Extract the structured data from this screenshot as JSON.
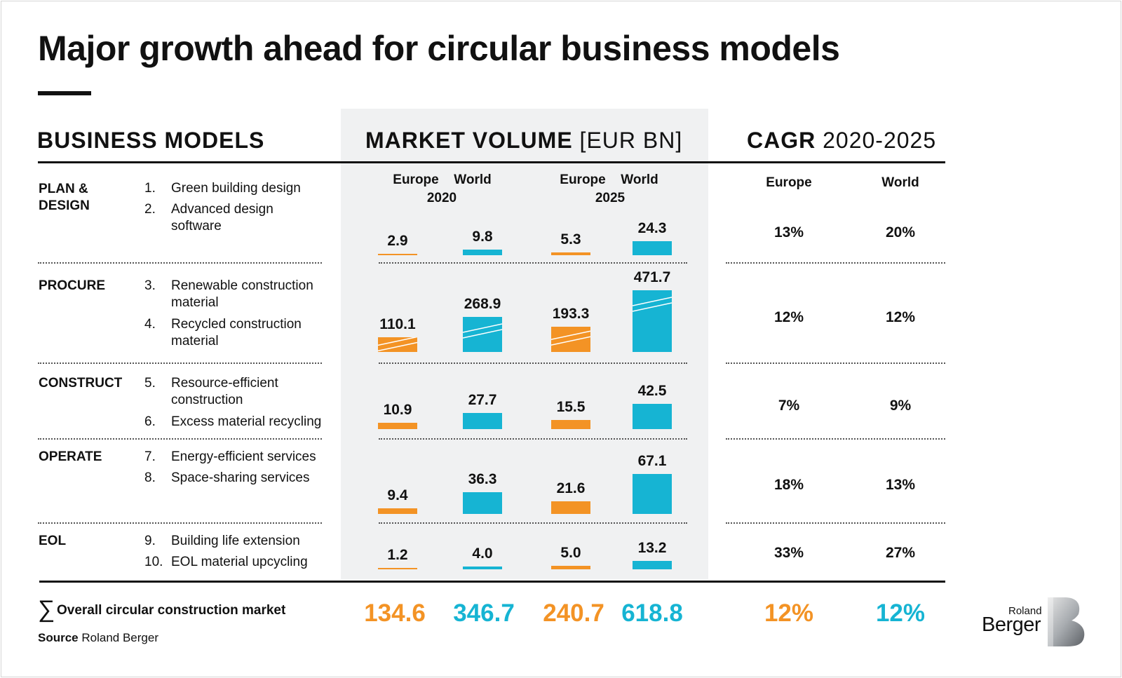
{
  "title": "Major growth ahead for circular business models",
  "headers": {
    "business_models": "BUSINESS MODELS",
    "market_volume_bold": "MARKET VOLUME",
    "market_volume_unit": "[EUR BN]",
    "cagr_bold": "CAGR",
    "cagr_range": "2020-2025"
  },
  "sub_labels": {
    "europe": "Europe",
    "world": "World",
    "year1": "2020",
    "year2": "2025"
  },
  "colors": {
    "europe": "#f39325",
    "world": "#16b4d3",
    "panel": "#f0f1f2"
  },
  "rows": [
    {
      "category": "PLAN & DESIGN",
      "items": [
        {
          "n": "1.",
          "t": "Green building design"
        },
        {
          "n": "2.",
          "t": "Advanced design software"
        }
      ]
    },
    {
      "category": "PROCURE",
      "items": [
        {
          "n": "3.",
          "t": "Renewable construction material"
        },
        {
          "n": "4.",
          "t": "Recycled construction material"
        }
      ]
    },
    {
      "category": "CONSTRUCT",
      "items": [
        {
          "n": "5.",
          "t": "Resource-efficient construction"
        },
        {
          "n": "6.",
          "t": "Excess material recycling"
        }
      ]
    },
    {
      "category": "OPERATE",
      "items": [
        {
          "n": "7.",
          "t": "Energy-efficient services"
        },
        {
          "n": "8.",
          "t": "Space-sharing services"
        }
      ]
    },
    {
      "category": "EOL",
      "items": [
        {
          "n": "9.",
          "t": "Building life extension"
        },
        {
          "n": "10.",
          "t": "EOL material upcycling"
        }
      ]
    }
  ],
  "chart_data": {
    "type": "bar",
    "categories": [
      "PLAN & DESIGN",
      "PROCURE",
      "CONSTRUCT",
      "OPERATE",
      "EOL"
    ],
    "series": [
      {
        "name": "Europe 2020",
        "values": [
          2.9,
          110.1,
          10.9,
          9.4,
          1.2
        ],
        "labels": [
          "2.9",
          "110.1",
          "10.9",
          "9.4",
          "1.2"
        ]
      },
      {
        "name": "World 2020",
        "values": [
          9.8,
          268.9,
          27.7,
          36.3,
          4.0
        ],
        "labels": [
          "9.8",
          "268.9",
          "27.7",
          "36.3",
          "4.0"
        ]
      },
      {
        "name": "Europe 2025",
        "values": [
          5.3,
          193.3,
          15.5,
          21.6,
          5.0
        ],
        "labels": [
          "5.3",
          "193.3",
          "15.5",
          "21.6",
          "5.0"
        ]
      },
      {
        "name": "World 2025",
        "values": [
          24.3,
          471.7,
          42.5,
          67.1,
          13.2
        ],
        "labels": [
          "24.3",
          "471.7",
          "42.5",
          "67.1",
          "13.2"
        ]
      }
    ],
    "cagr": {
      "europe": [
        "13%",
        "12%",
        "7%",
        "18%",
        "33%"
      ],
      "world": [
        "20%",
        "12%",
        "9%",
        "13%",
        "27%"
      ]
    },
    "totals": {
      "europe_2020": "134.6",
      "world_2020": "346.7",
      "europe_2025": "240.7",
      "world_2025": "618.8",
      "cagr_europe": "12%",
      "cagr_world": "12%"
    }
  },
  "footer": {
    "sigma": "∑",
    "overall": "Overall circular construction market",
    "source_bold": "Source",
    "source_text": "Roland Berger",
    "logo_top": "Roland",
    "logo_bottom": "Berger"
  }
}
